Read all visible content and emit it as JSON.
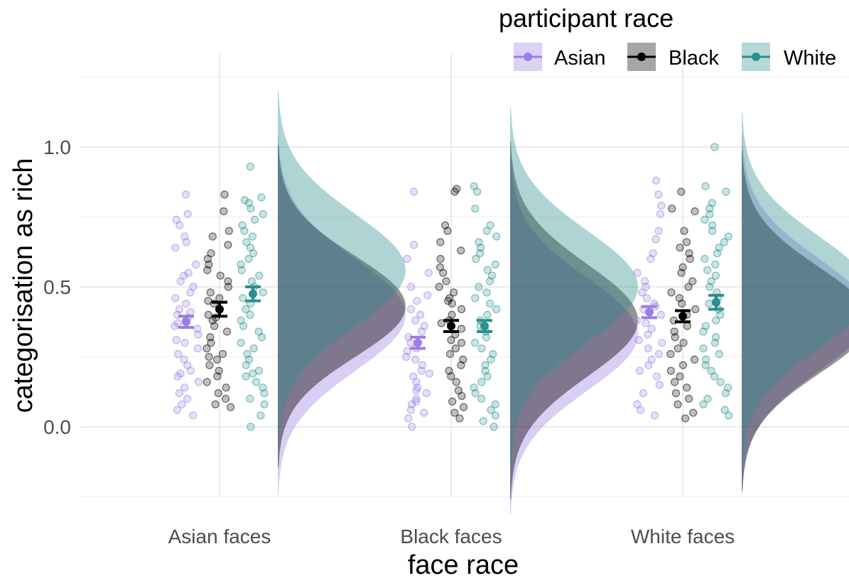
{
  "chart_data": {
    "type": "scatter",
    "subtype": "raincloud",
    "xlabel": "face race",
    "ylabel": "categorisation as rich",
    "categories": [
      "Asian faces",
      "Black faces",
      "White faces"
    ],
    "ylim": [
      -0.25,
      1.25
    ],
    "yticks": [
      0.0,
      0.5,
      1.0
    ],
    "ytick_labels": [
      "0.0",
      "0.5",
      "1.0"
    ],
    "grid": true,
    "legend": {
      "title": "participant race",
      "position": "top-right"
    },
    "series": [
      {
        "name": "Asian",
        "color": "#9b7ee3",
        "means": [
          0.375,
          0.3,
          0.41
        ],
        "se": [
          0.02,
          0.02,
          0.02
        ],
        "density_peak": [
          0.4,
          0.33,
          0.4
        ],
        "density_sd": [
          0.2,
          0.2,
          0.2
        ],
        "points": [
          [
            0.83,
            0.76,
            0.74,
            0.72,
            0.68,
            0.66,
            0.64,
            0.58,
            0.55,
            0.54,
            0.52,
            0.5,
            0.48,
            0.46,
            0.44,
            0.42,
            0.41,
            0.4,
            0.39,
            0.38,
            0.37,
            0.36,
            0.35,
            0.33,
            0.31,
            0.3,
            0.28,
            0.26,
            0.24,
            0.22,
            0.2,
            0.19,
            0.18,
            0.16,
            0.14,
            0.12,
            0.1,
            0.08,
            0.06,
            0.04
          ],
          [
            0.84,
            0.65,
            0.6,
            0.55,
            0.5,
            0.47,
            0.45,
            0.42,
            0.4,
            0.38,
            0.36,
            0.34,
            0.32,
            0.3,
            0.28,
            0.27,
            0.25,
            0.24,
            0.22,
            0.2,
            0.19,
            0.18,
            0.16,
            0.14,
            0.13,
            0.12,
            0.1,
            0.09,
            0.08,
            0.06,
            0.05,
            0.03,
            0.0
          ],
          [
            0.88,
            0.83,
            0.79,
            0.76,
            0.7,
            0.67,
            0.62,
            0.6,
            0.55,
            0.52,
            0.5,
            0.48,
            0.46,
            0.44,
            0.43,
            0.42,
            0.4,
            0.38,
            0.37,
            0.35,
            0.33,
            0.31,
            0.3,
            0.28,
            0.26,
            0.24,
            0.22,
            0.2,
            0.18,
            0.15,
            0.12,
            0.08,
            0.06,
            0.04
          ]
        ]
      },
      {
        "name": "Black",
        "color": "#000000",
        "means": [
          0.42,
          0.36,
          0.395
        ],
        "se": [
          0.025,
          0.02,
          0.02
        ],
        "density_peak": [
          0.43,
          0.38,
          0.38
        ],
        "density_sd": [
          0.18,
          0.2,
          0.19
        ],
        "points": [
          [
            0.83,
            0.77,
            0.7,
            0.68,
            0.65,
            0.62,
            0.6,
            0.58,
            0.56,
            0.54,
            0.52,
            0.5,
            0.48,
            0.46,
            0.45,
            0.44,
            0.42,
            0.4,
            0.39,
            0.38,
            0.36,
            0.34,
            0.32,
            0.3,
            0.28,
            0.26,
            0.25,
            0.24,
            0.22,
            0.2,
            0.18,
            0.16,
            0.14,
            0.12,
            0.1,
            0.08,
            0.07
          ],
          [
            0.85,
            0.84,
            0.72,
            0.7,
            0.66,
            0.63,
            0.6,
            0.57,
            0.55,
            0.52,
            0.5,
            0.48,
            0.46,
            0.45,
            0.44,
            0.42,
            0.4,
            0.38,
            0.37,
            0.35,
            0.33,
            0.31,
            0.3,
            0.28,
            0.26,
            0.24,
            0.22,
            0.2,
            0.18,
            0.16,
            0.13,
            0.11,
            0.09,
            0.07,
            0.05,
            0.03
          ],
          [
            0.84,
            0.78,
            0.77,
            0.7,
            0.66,
            0.64,
            0.62,
            0.6,
            0.57,
            0.55,
            0.52,
            0.5,
            0.48,
            0.46,
            0.44,
            0.42,
            0.4,
            0.38,
            0.36,
            0.34,
            0.32,
            0.3,
            0.28,
            0.26,
            0.24,
            0.22,
            0.2,
            0.18,
            0.16,
            0.14,
            0.12,
            0.1,
            0.08,
            0.05,
            0.03
          ]
        ]
      },
      {
        "name": "White",
        "color": "#2a8f8f",
        "means": [
          0.475,
          0.36,
          0.445
        ],
        "se": [
          0.025,
          0.02,
          0.025
        ],
        "density_peak": [
          0.56,
          0.5,
          0.48
        ],
        "density_sd": [
          0.2,
          0.2,
          0.2
        ],
        "points": [
          [
            0.93,
            0.82,
            0.81,
            0.8,
            0.78,
            0.76,
            0.74,
            0.72,
            0.7,
            0.68,
            0.66,
            0.64,
            0.62,
            0.6,
            0.58,
            0.56,
            0.54,
            0.52,
            0.5,
            0.48,
            0.46,
            0.44,
            0.42,
            0.4,
            0.38,
            0.36,
            0.34,
            0.32,
            0.3,
            0.28,
            0.26,
            0.24,
            0.22,
            0.2,
            0.19,
            0.18,
            0.16,
            0.14,
            0.12,
            0.1,
            0.08,
            0.04,
            0.0
          ],
          [
            0.86,
            0.84,
            0.78,
            0.72,
            0.7,
            0.68,
            0.66,
            0.64,
            0.62,
            0.6,
            0.58,
            0.56,
            0.54,
            0.52,
            0.5,
            0.48,
            0.46,
            0.44,
            0.42,
            0.4,
            0.38,
            0.36,
            0.34,
            0.32,
            0.3,
            0.28,
            0.26,
            0.24,
            0.22,
            0.2,
            0.18,
            0.16,
            0.14,
            0.12,
            0.1,
            0.08,
            0.06,
            0.04,
            0.02,
            0.0
          ],
          [
            1.0,
            0.86,
            0.84,
            0.8,
            0.78,
            0.76,
            0.74,
            0.72,
            0.7,
            0.68,
            0.66,
            0.64,
            0.62,
            0.6,
            0.58,
            0.56,
            0.54,
            0.52,
            0.5,
            0.48,
            0.46,
            0.44,
            0.42,
            0.4,
            0.38,
            0.36,
            0.34,
            0.32,
            0.3,
            0.28,
            0.26,
            0.24,
            0.22,
            0.2,
            0.18,
            0.16,
            0.14,
            0.12,
            0.1,
            0.08,
            0.06,
            0.04
          ]
        ]
      }
    ]
  }
}
